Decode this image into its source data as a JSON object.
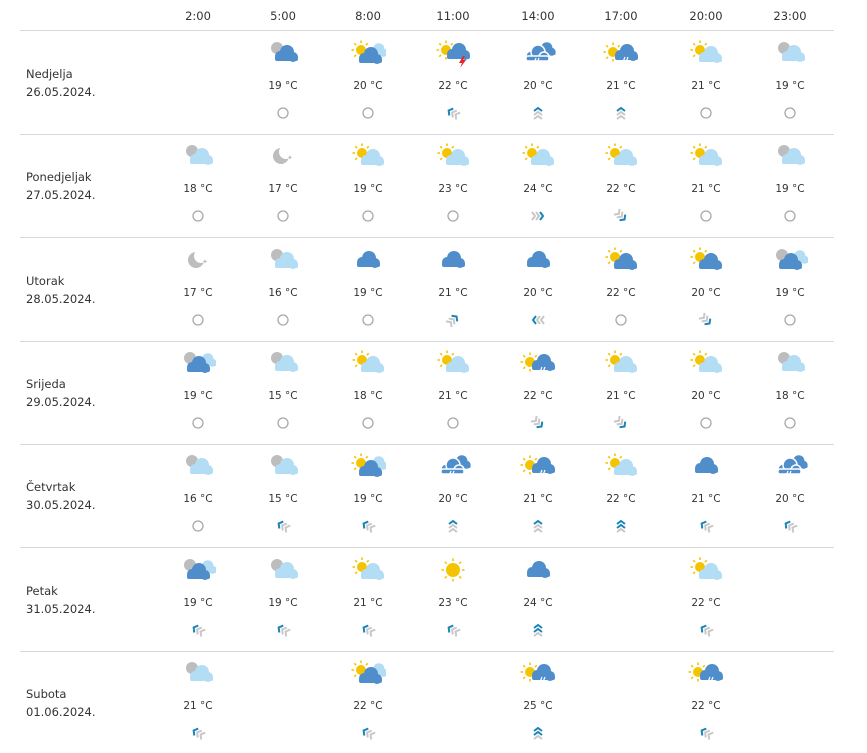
{
  "hours": [
    "2:00",
    "5:00",
    "8:00",
    "11:00",
    "14:00",
    "17:00",
    "20:00",
    "23:00"
  ],
  "colors": {
    "cloud_dark": "#4f8ecb",
    "cloud_light": "#b3dcf5",
    "sun": "#f5c400",
    "grey": "#bdbdbd",
    "bolt": "#e5252b",
    "wind_active": "#1a85b8",
    "wind_inactive": "#c8c8c8",
    "calm": "#a8a8a8"
  },
  "days": [
    {
      "name": "Nedjelja",
      "date": "26.05.2024.",
      "cells": [
        null,
        {
          "icon": "grey-sun-dark-cloud",
          "temp": "19 °C",
          "wind": "calm"
        },
        {
          "icon": "sun-two-clouds",
          "temp": "20 °C",
          "wind": "calm"
        },
        {
          "icon": "sun-thunderstorm",
          "temp": "22 °C",
          "wind": {
            "dir": "northwest",
            "strength": 1
          }
        },
        {
          "icon": "rain-clouds",
          "temp": "20 °C",
          "wind": {
            "dir": "north",
            "strength": 1
          }
        },
        {
          "icon": "sun-rain",
          "temp": "21 °C",
          "wind": {
            "dir": "north",
            "strength": 1
          }
        },
        {
          "icon": "sun-light-cloud",
          "temp": "21 °C",
          "wind": "calm"
        },
        {
          "icon": "grey-sun-light-cloud",
          "temp": "19 °C",
          "wind": "calm"
        }
      ]
    },
    {
      "name": "Ponedjeljak",
      "date": "27.05.2024.",
      "cells": [
        {
          "icon": "grey-sun-light-cloud",
          "temp": "18 °C",
          "wind": "calm"
        },
        {
          "icon": "moon-stars",
          "temp": "17 °C",
          "wind": "calm"
        },
        {
          "icon": "sun-light-cloud",
          "temp": "19 °C",
          "wind": "calm"
        },
        {
          "icon": "sun-light-cloud",
          "temp": "23 °C",
          "wind": "calm"
        },
        {
          "icon": "sun-light-cloud",
          "temp": "24 °C",
          "wind": {
            "dir": "east",
            "strength": 1
          }
        },
        {
          "icon": "sun-light-cloud",
          "temp": "22 °C",
          "wind": {
            "dir": "southeast",
            "strength": 1
          }
        },
        {
          "icon": "sun-light-cloud",
          "temp": "21 °C",
          "wind": "calm"
        },
        {
          "icon": "grey-sun-light-cloud",
          "temp": "19 °C",
          "wind": "calm"
        }
      ]
    },
    {
      "name": "Utorak",
      "date": "28.05.2024.",
      "cells": [
        {
          "icon": "moon-stars",
          "temp": "17 °C",
          "wind": "calm"
        },
        {
          "icon": "grey-sun-light-cloud",
          "temp": "16 °C",
          "wind": "calm"
        },
        {
          "icon": "dark-cloud",
          "temp": "19 °C",
          "wind": "calm"
        },
        {
          "icon": "dark-cloud",
          "temp": "21 °C",
          "wind": {
            "dir": "northeast",
            "strength": 1
          }
        },
        {
          "icon": "dark-cloud",
          "temp": "20 °C",
          "wind": {
            "dir": "west",
            "strength": 1
          }
        },
        {
          "icon": "sun-dark-cloud",
          "temp": "22 °C",
          "wind": "calm"
        },
        {
          "icon": "sun-dark-cloud",
          "temp": "20 °C",
          "wind": {
            "dir": "southeast",
            "strength": 1
          }
        },
        {
          "icon": "grey-sun-two-clouds",
          "temp": "19 °C",
          "wind": "calm"
        }
      ]
    },
    {
      "name": "Srijeda",
      "date": "29.05.2024.",
      "cells": [
        {
          "icon": "grey-sun-two-clouds",
          "temp": "19 °C",
          "wind": "calm"
        },
        {
          "icon": "grey-sun-light-cloud",
          "temp": "15 °C",
          "wind": "calm"
        },
        {
          "icon": "sun-light-cloud",
          "temp": "18 °C",
          "wind": "calm"
        },
        {
          "icon": "sun-light-cloud",
          "temp": "21 °C",
          "wind": "calm"
        },
        {
          "icon": "sun-rain",
          "temp": "22 °C",
          "wind": {
            "dir": "southeast",
            "strength": 1
          }
        },
        {
          "icon": "sun-light-cloud",
          "temp": "21 °C",
          "wind": {
            "dir": "southeast",
            "strength": 1
          }
        },
        {
          "icon": "sun-light-cloud",
          "temp": "20 °C",
          "wind": "calm"
        },
        {
          "icon": "grey-sun-light-cloud",
          "temp": "18 °C",
          "wind": "calm"
        }
      ]
    },
    {
      "name": "Četvrtak",
      "date": "30.05.2024.",
      "cells": [
        {
          "icon": "grey-sun-light-cloud",
          "temp": "16 °C",
          "wind": "calm"
        },
        {
          "icon": "grey-sun-light-cloud",
          "temp": "15 °C",
          "wind": {
            "dir": "northwest",
            "strength": 1
          }
        },
        {
          "icon": "sun-two-clouds",
          "temp": "19 °C",
          "wind": {
            "dir": "northwest",
            "strength": 1
          }
        },
        {
          "icon": "rain-clouds",
          "temp": "20 °C",
          "wind": {
            "dir": "north",
            "strength": 1
          }
        },
        {
          "icon": "sun-rain",
          "temp": "21 °C",
          "wind": {
            "dir": "north",
            "strength": 1
          }
        },
        {
          "icon": "sun-light-cloud",
          "temp": "22 °C",
          "wind": {
            "dir": "north",
            "strength": 2
          }
        },
        {
          "icon": "dark-cloud",
          "temp": "21 °C",
          "wind": {
            "dir": "northwest",
            "strength": 1
          }
        },
        {
          "icon": "rain-clouds",
          "temp": "20 °C",
          "wind": {
            "dir": "northwest",
            "strength": 1
          }
        }
      ]
    },
    {
      "name": "Petak",
      "date": "31.05.2024.",
      "cells": [
        {
          "icon": "grey-sun-two-clouds",
          "temp": "19 °C",
          "wind": {
            "dir": "northwest",
            "strength": 1
          }
        },
        {
          "icon": "grey-sun-light-cloud",
          "temp": "19 °C",
          "wind": {
            "dir": "northwest",
            "strength": 1
          }
        },
        {
          "icon": "sun-light-cloud",
          "temp": "21 °C",
          "wind": {
            "dir": "northwest",
            "strength": 1
          }
        },
        {
          "icon": "sun",
          "temp": "23 °C",
          "wind": {
            "dir": "northwest",
            "strength": 1
          }
        },
        {
          "icon": "dark-cloud",
          "temp": "24 °C",
          "wind": {
            "dir": "north",
            "strength": 2
          }
        },
        null,
        {
          "icon": "sun-light-cloud",
          "temp": "22 °C",
          "wind": {
            "dir": "northwest",
            "strength": 1
          }
        },
        null
      ]
    },
    {
      "name": "Subota",
      "date": "01.06.2024.",
      "cells": [
        {
          "icon": "grey-sun-light-cloud",
          "temp": "21 °C",
          "wind": {
            "dir": "northwest",
            "strength": 1
          }
        },
        null,
        {
          "icon": "sun-two-clouds",
          "temp": "22 °C",
          "wind": {
            "dir": "northwest",
            "strength": 1
          }
        },
        null,
        {
          "icon": "sun-rain",
          "temp": "25 °C",
          "wind": {
            "dir": "north",
            "strength": 2
          }
        },
        null,
        {
          "icon": "sun-rain",
          "temp": "22 °C",
          "wind": {
            "dir": "northwest",
            "strength": 1
          }
        },
        null
      ]
    }
  ]
}
